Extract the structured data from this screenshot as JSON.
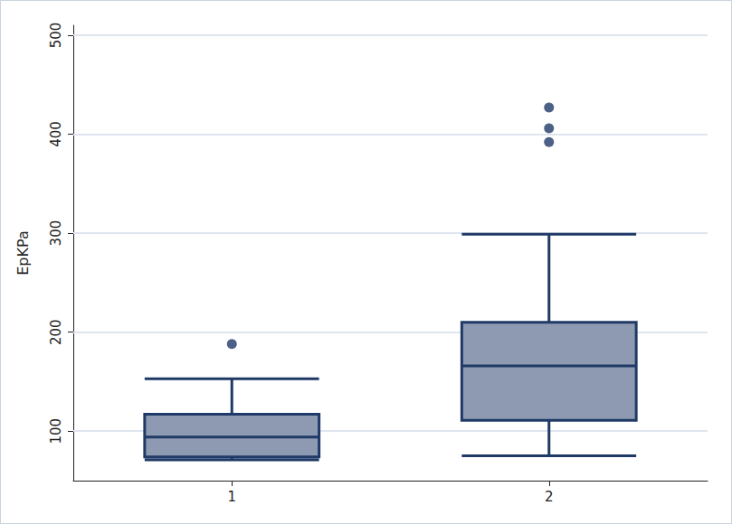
{
  "chart_data": {
    "type": "boxplot",
    "y_label": "EpKPa",
    "categories": [
      "1",
      "2"
    ],
    "boxes": [
      {
        "min": 71,
        "q1": 74,
        "median": 94,
        "q3": 117,
        "max": 153,
        "outliers": [
          188
        ]
      },
      {
        "min": 75,
        "q1": 111,
        "median": 166,
        "q3": 210,
        "max": 299,
        "outliers": [
          392,
          406,
          427
        ]
      }
    ],
    "color": "#8e9ab2",
    "ylim": [
      50,
      510
    ],
    "yticks": [
      100,
      200,
      300,
      400,
      500
    ],
    "grid": true
  }
}
